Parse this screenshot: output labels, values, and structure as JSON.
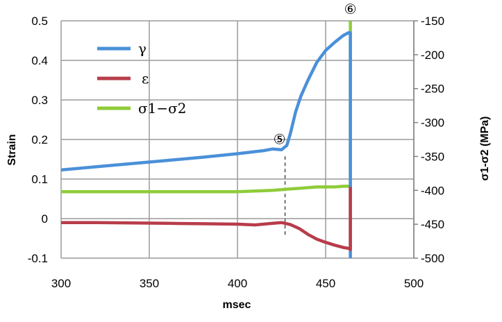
{
  "chart_data": {
    "type": "line",
    "xlabel": "msec",
    "ylabel": "Strain",
    "y2label": "σ1-σ2 (MPa)",
    "xlim": [
      300,
      500
    ],
    "ylim": [
      -0.1,
      0.5
    ],
    "y2lim": [
      -500,
      -150
    ],
    "x_ticks": [
      "300",
      "350",
      "400",
      "450",
      "500"
    ],
    "y_ticks": [
      "-0.1",
      "0",
      "0.1",
      "0.2",
      "0.3",
      "0.4",
      "0.5"
    ],
    "y2_ticks": [
      "-500",
      "-450",
      "-400",
      "-350",
      "-300",
      "-250",
      "-200",
      "-150"
    ],
    "grid": true,
    "legend_position": "top-left",
    "series": [
      {
        "name": "γ",
        "color": "#4a90d9",
        "axis": "left",
        "x": [
          300,
          320,
          340,
          360,
          380,
          400,
          415,
          420,
          425,
          428,
          430,
          433,
          436,
          440,
          445,
          450,
          455,
          460,
          463,
          464,
          464
        ],
        "y": [
          0.123,
          0.131,
          0.139,
          0.147,
          0.155,
          0.164,
          0.172,
          0.176,
          0.174,
          0.185,
          0.215,
          0.27,
          0.31,
          0.35,
          0.395,
          0.425,
          0.445,
          0.463,
          0.47,
          0.47,
          -0.1
        ]
      },
      {
        "name": "ε",
        "color": "#b83c4a",
        "axis": "left",
        "x": [
          300,
          320,
          340,
          360,
          380,
          400,
          410,
          420,
          425,
          430,
          435,
          440,
          445,
          450,
          455,
          460,
          463,
          464,
          464
        ],
        "y": [
          -0.01,
          -0.01,
          -0.011,
          -0.012,
          -0.013,
          -0.014,
          -0.016,
          -0.012,
          -0.01,
          -0.015,
          -0.025,
          -0.04,
          -0.052,
          -0.06,
          -0.067,
          -0.073,
          -0.075,
          -0.078,
          0.08
        ]
      },
      {
        "name": "σ1−σ2",
        "color": "#8fcc3a",
        "axis": "right",
        "x": [
          300,
          320,
          340,
          360,
          380,
          400,
          410,
          420,
          425,
          430,
          435,
          440,
          445,
          450,
          455,
          460,
          463,
          464,
          464
        ],
        "y": [
          -402,
          -402,
          -402,
          -402,
          -402,
          -402,
          -401,
          -400,
          -399,
          -398,
          -397,
          -396,
          -395,
          -395,
          -395,
          -394,
          -394,
          -394,
          -150
        ]
      }
    ],
    "annotations": [
      {
        "label": "⑤",
        "x": 427
      },
      {
        "label": "⑥",
        "x": 464
      }
    ]
  },
  "colors": {
    "grid": "#9a9a9a",
    "axis": "#808080",
    "dashed": "#000000"
  }
}
